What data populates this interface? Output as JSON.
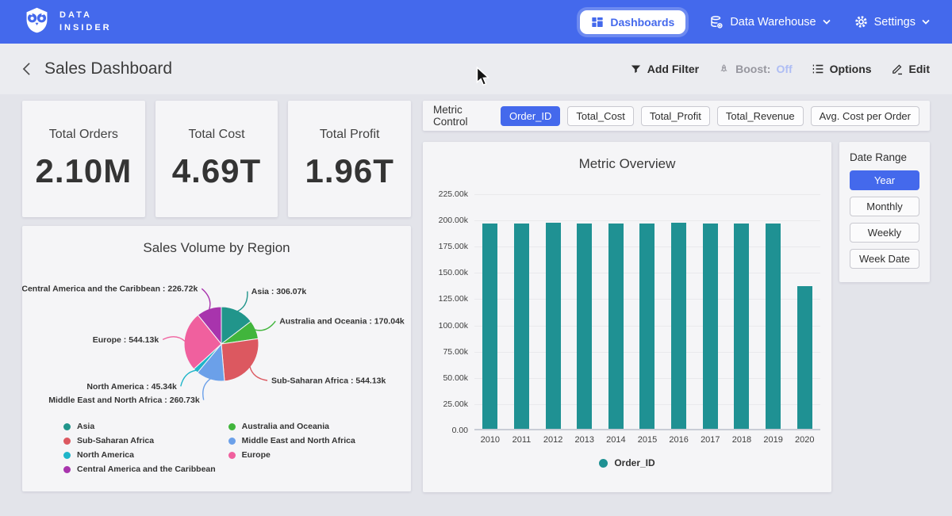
{
  "brand": {
    "line1": "DATA",
    "line2": "INSIDER"
  },
  "navbar": {
    "dashboards": "Dashboards",
    "data_warehouse": "Data Warehouse",
    "settings": "Settings"
  },
  "header": {
    "title": "Sales Dashboard",
    "add_filter": "Add Filter",
    "boost_label": "Boost:",
    "boost_value": "Off",
    "options": "Options",
    "edit": "Edit"
  },
  "kpis": [
    {
      "label": "Total Orders",
      "value": "2.10M"
    },
    {
      "label": "Total Cost",
      "value": "4.69T"
    },
    {
      "label": "Total Profit",
      "value": "1.96T"
    }
  ],
  "metric_control": {
    "label": "Metric Control",
    "selected": "Order_ID",
    "buttons": [
      "Order_ID",
      "Total_Cost",
      "Total_Profit",
      "Total_Revenue",
      "Avg. Cost per Order"
    ]
  },
  "date_range": {
    "label": "Date Range",
    "selected": "Year",
    "buttons": [
      "Year",
      "Monthly",
      "Weekly",
      "Week Date"
    ]
  },
  "colors": {
    "accent_blue": "#4469ec",
    "bar_teal": "#1f9193"
  },
  "chart_data": [
    {
      "type": "pie",
      "title": "Sales Volume by Region",
      "slices": [
        {
          "name": "Asia",
          "value": 306070,
          "callout": "Asia : 306.07k",
          "color": "#21958b"
        },
        {
          "name": "Australia and Oceania",
          "value": 170040,
          "callout": "Australia and Oceania : 170.04k",
          "color": "#41b53c"
        },
        {
          "name": "Sub-Saharan Africa",
          "value": 544130,
          "callout": "Sub-Saharan Africa : 544.13k",
          "color": "#dc5860"
        },
        {
          "name": "Middle East and North Africa",
          "value": 260730,
          "callout": "Middle East and North Africa : 260.73k",
          "color": "#6ba0e9"
        },
        {
          "name": "North America",
          "value": 45340,
          "callout": "North America : 45.34k",
          "color": "#1fb5c9"
        },
        {
          "name": "Europe",
          "value": 544130,
          "callout": "Europe : 544.13k",
          "color": "#f0609e"
        },
        {
          "name": "Central America and the Caribbean",
          "value": 226720,
          "callout": "Central America and the Caribbean : 226.72k",
          "color": "#a834ad"
        }
      ],
      "legend_order": [
        "Asia",
        "Sub-Saharan Africa",
        "North America",
        "Central America and the Caribbean",
        "Australia and Oceania",
        "Middle East and North Africa",
        "Europe"
      ],
      "start_angle_deg": 0,
      "direction": "clockwise"
    },
    {
      "type": "bar",
      "title": "Metric Overview",
      "categories": [
        "2010",
        "2011",
        "2012",
        "2013",
        "2014",
        "2015",
        "2016",
        "2017",
        "2018",
        "2019",
        "2020"
      ],
      "series": [
        {
          "name": "Order_ID",
          "color": "#1f9193",
          "values": [
            195500,
            195500,
            196300,
            195400,
            195500,
            195400,
            196400,
            195700,
            195500,
            195600,
            135600
          ]
        }
      ],
      "yticks": [
        "225.00k",
        "200.00k",
        "175.00k",
        "150.00k",
        "125.00k",
        "100.00k",
        "75.00k",
        "50.00k",
        "25.00k",
        "0.00"
      ],
      "ylim": [
        0,
        225000
      ],
      "legend": "Order_ID",
      "grid": true,
      "legend_position": "bottom"
    }
  ]
}
